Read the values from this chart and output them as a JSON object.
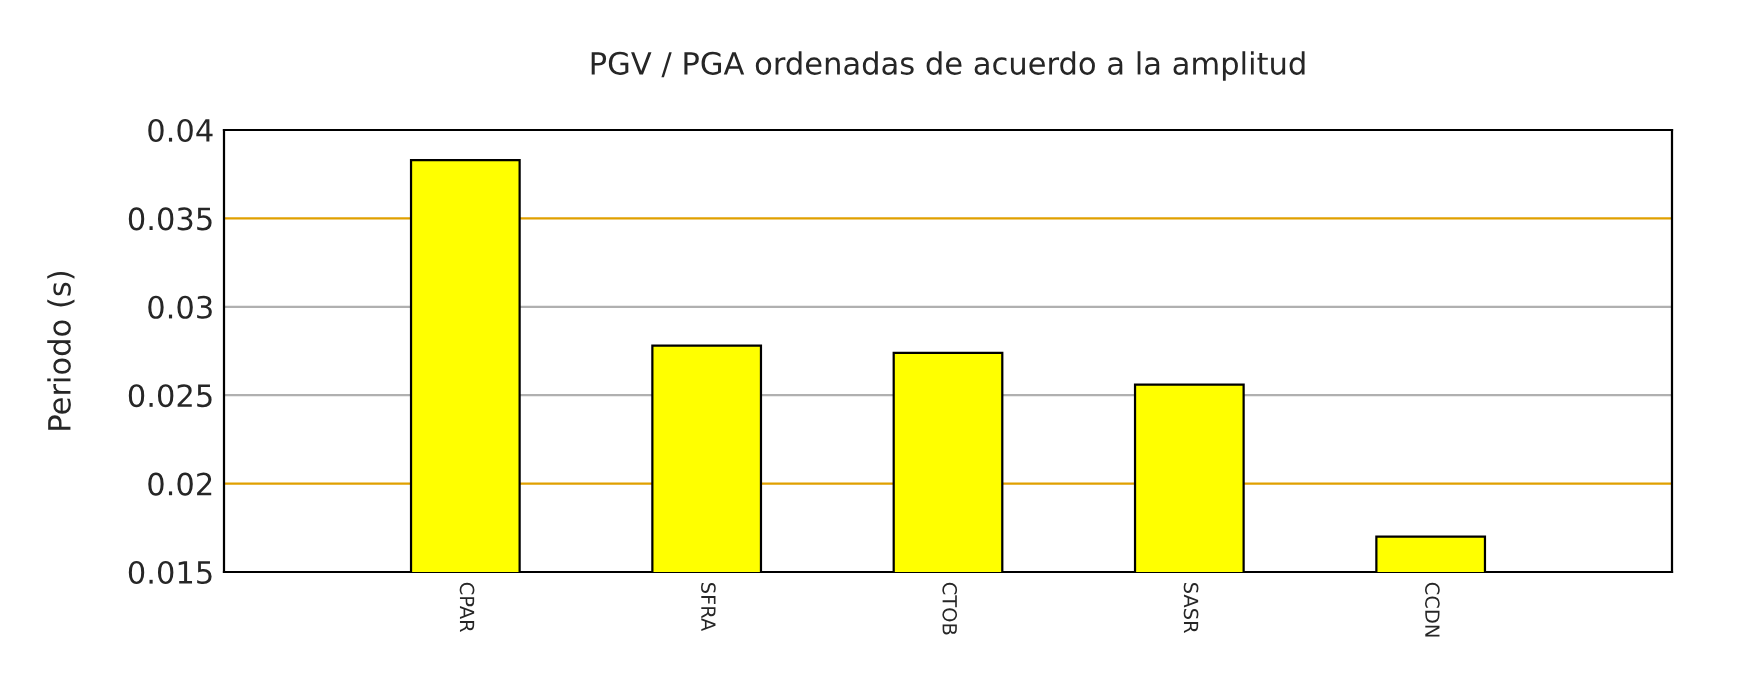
{
  "chart_data": {
    "type": "bar",
    "title": "PGV / PGA ordenadas de acuerdo a la amplitud",
    "ylabel": "Periodo (s)",
    "categories": [
      "CPAR",
      "SFRA",
      "CTOB",
      "SASR",
      "CCDN"
    ],
    "values": [
      0.0383,
      0.0278,
      0.0274,
      0.0256,
      0.017
    ],
    "color": "#ffff00",
    "ylim": [
      0.015,
      0.04
    ],
    "yticks": [
      0.015,
      0.02,
      0.025,
      0.03,
      0.035,
      0.04
    ],
    "grid": "y"
  }
}
